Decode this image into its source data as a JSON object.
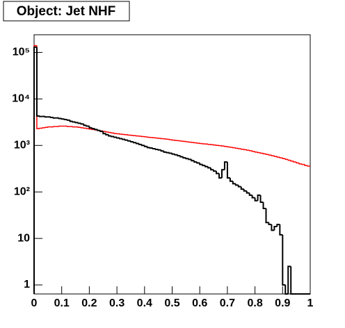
{
  "chart_data": {
    "type": "histogram",
    "title": "Object: Jet NHF",
    "bins": [
      0,
      0.01,
      0.02,
      0.03,
      0.04,
      0.05,
      0.06,
      0.07,
      0.08,
      0.09,
      0.1,
      0.11,
      0.12,
      0.13,
      0.14,
      0.15,
      0.16,
      0.17,
      0.18,
      0.19,
      0.2,
      0.21,
      0.22,
      0.23,
      0.24,
      0.25,
      0.26,
      0.27,
      0.28,
      0.29,
      0.3,
      0.31,
      0.32,
      0.33,
      0.34,
      0.35,
      0.36,
      0.37,
      0.38,
      0.39,
      0.4,
      0.41,
      0.42,
      0.43,
      0.44,
      0.45,
      0.46,
      0.47,
      0.48,
      0.49,
      0.5,
      0.51,
      0.52,
      0.53,
      0.54,
      0.55,
      0.56,
      0.57,
      0.58,
      0.59,
      0.6,
      0.61,
      0.62,
      0.63,
      0.64,
      0.65,
      0.66,
      0.67,
      0.68,
      0.69,
      0.7,
      0.71,
      0.72,
      0.73,
      0.74,
      0.75,
      0.76,
      0.77,
      0.78,
      0.79,
      0.8,
      0.81,
      0.82,
      0.83,
      0.84,
      0.85,
      0.86,
      0.87,
      0.88,
      0.89,
      0.9,
      0.91,
      0.92,
      0.93,
      0.94,
      0.95,
      0.96,
      0.97,
      0.98,
      0.99,
      1
    ],
    "series": [
      {
        "color": "#000000",
        "values": [
          130000,
          4300,
          4200,
          4200,
          4100,
          4100,
          4000,
          3900,
          3900,
          3800,
          3700,
          3600,
          3500,
          3300,
          3200,
          3100,
          3000,
          2900,
          2700,
          2600,
          2400,
          2300,
          2200,
          2100,
          2000,
          1800,
          1700,
          1600,
          1550,
          1500,
          1450,
          1400,
          1350,
          1300,
          1250,
          1200,
          1150,
          1100,
          1050,
          1000,
          950,
          900,
          880,
          850,
          820,
          800,
          760,
          720,
          700,
          680,
          650,
          630,
          600,
          570,
          540,
          520,
          500,
          470,
          440,
          420,
          390,
          370,
          350,
          330,
          300,
          280,
          250,
          200,
          300,
          440,
          200,
          170,
          150,
          140,
          130,
          115,
          105,
          95,
          85,
          75,
          65,
          85,
          60,
          44,
          22,
          20,
          15,
          18,
          20,
          12,
          1,
          0,
          2.5,
          0,
          0,
          0,
          0,
          0,
          0,
          0
        ]
      },
      {
        "color": "#ff0000",
        "values": [
          140000,
          2300,
          2350,
          2400,
          2450,
          2500,
          2500,
          2550,
          2550,
          2600,
          2600,
          2600,
          2550,
          2550,
          2500,
          2500,
          2450,
          2400,
          2350,
          2300,
          2250,
          2200,
          2150,
          2100,
          2050,
          2000,
          1950,
          1900,
          1850,
          1800,
          1780,
          1750,
          1720,
          1700,
          1670,
          1650,
          1620,
          1600,
          1580,
          1550,
          1530,
          1500,
          1480,
          1460,
          1440,
          1420,
          1400,
          1380,
          1360,
          1330,
          1300,
          1280,
          1260,
          1240,
          1220,
          1200,
          1180,
          1160,
          1140,
          1120,
          1100,
          1080,
          1070,
          1050,
          1040,
          1020,
          1000,
          990,
          970,
          950,
          930,
          910,
          890,
          870,
          850,
          830,
          810,
          790,
          770,
          745,
          720,
          700,
          680,
          660,
          640,
          620,
          600,
          580,
          560,
          540,
          520,
          500,
          480,
          460,
          440,
          420,
          400,
          390,
          370,
          360
        ]
      }
    ],
    "xlim": [
      0,
      1
    ],
    "xticks": [
      0,
      0.1,
      0.2,
      0.3,
      0.4,
      0.5,
      0.6,
      0.7,
      0.8,
      0.9,
      1
    ],
    "ylim": [
      0.64,
      240000
    ],
    "log_y": true,
    "yticks": [
      1,
      10,
      {
        "value": 100,
        "label": "10²"
      },
      {
        "value": 1000,
        "label": "10³"
      },
      {
        "value": 10000,
        "label": "10⁴"
      },
      {
        "value": 100000,
        "label": "10⁵"
      }
    ]
  }
}
